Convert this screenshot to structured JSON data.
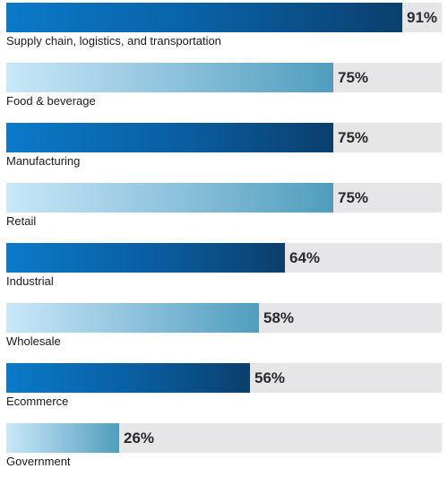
{
  "chart_data": {
    "type": "bar",
    "orientation": "horizontal",
    "categories": [
      "Supply chain, logistics, and transportation",
      "Food & beverage",
      "Manufacturing",
      "Retail",
      "Industrial",
      "Wholesale",
      "Ecommerce",
      "Government"
    ],
    "values": [
      91,
      75,
      75,
      75,
      64,
      58,
      56,
      26
    ],
    "value_labels": [
      "91%",
      "75%",
      "75%",
      "75%",
      "64%",
      "58%",
      "56%",
      "26%"
    ],
    "unit": "%",
    "xlim": [
      0,
      100
    ],
    "grid": false,
    "legend": "none",
    "colors": {
      "dark_bar_start": "#0a7ac9",
      "dark_bar_end": "#0b3f6d",
      "light_bar_start": "#c8e8f8",
      "light_bar_end": "#4f9dbd",
      "track": "#e6e6e9"
    }
  }
}
